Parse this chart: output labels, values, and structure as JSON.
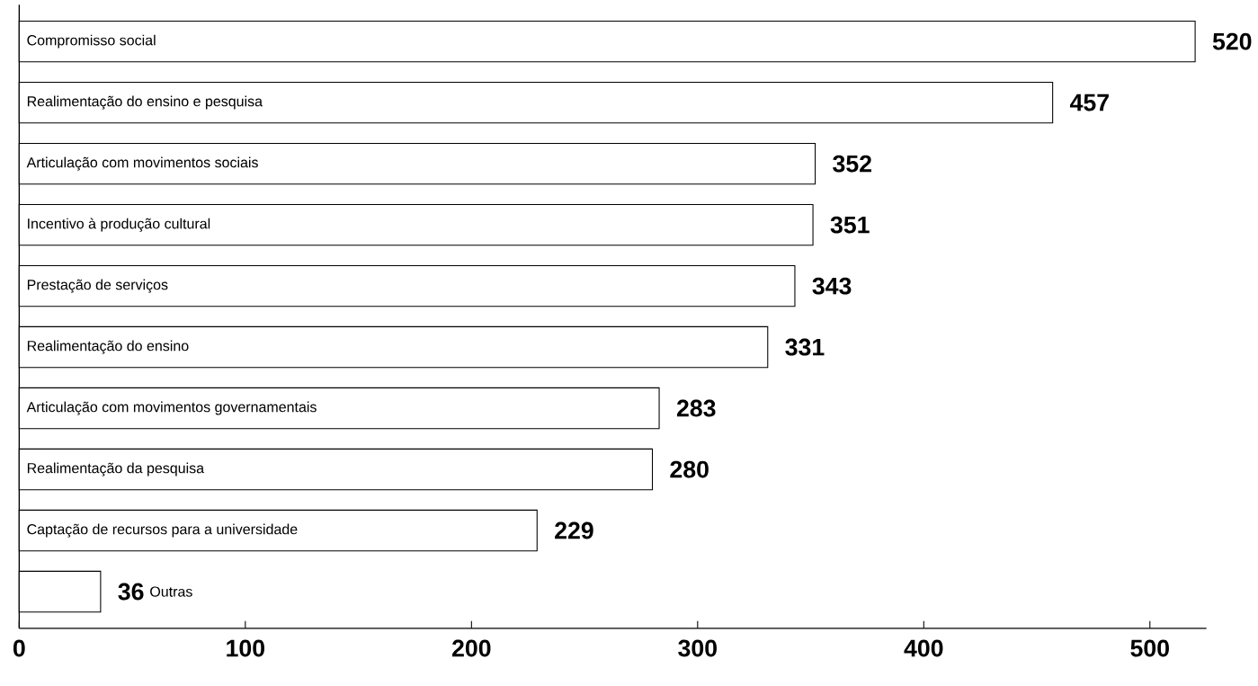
{
  "chart_data": {
    "type": "bar",
    "orientation": "horizontal",
    "categories": [
      "Compromisso social",
      "Realimentação do ensino e pesquisa",
      "Articulação com movimentos sociais",
      "Incentivo à produção cultural",
      "Prestação de serviços",
      "Realimentação do ensino",
      "Articulação com movimentos governamentais",
      "Realimentação da pesquisa",
      "Captação de recursos para a universidade",
      "Outras"
    ],
    "values": [
      520,
      457,
      352,
      351,
      343,
      331,
      283,
      280,
      229,
      36
    ],
    "color": "#ffffff",
    "xlim": [
      0,
      525
    ],
    "xticks": [
      0,
      100,
      200,
      300,
      400,
      500
    ],
    "data_labels": true
  }
}
